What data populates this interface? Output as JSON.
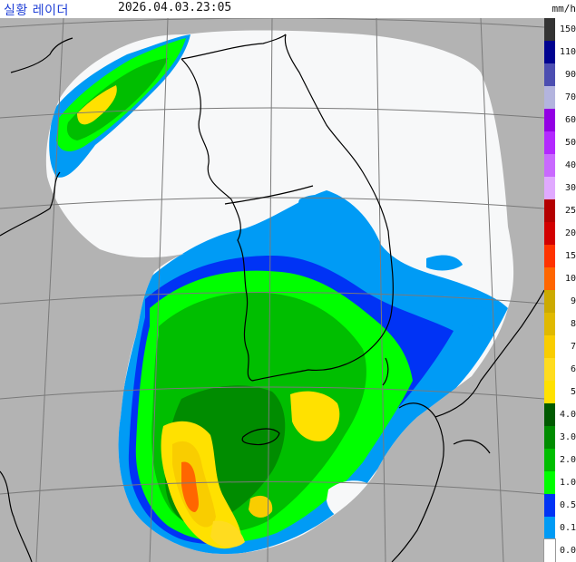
{
  "header": {
    "title": "실황 레이더",
    "timestamp": "2026.04.03.23:05"
  },
  "legend": {
    "unit": "mm/h",
    "levels": [
      {
        "label": "150",
        "color": "#333333"
      },
      {
        "label": "110",
        "color": "#000390"
      },
      {
        "label": "90",
        "color": "#4c4eb1"
      },
      {
        "label": "70",
        "color": "#b3b4de"
      },
      {
        "label": "60",
        "color": "#9300e4"
      },
      {
        "label": "50",
        "color": "#b329ff"
      },
      {
        "label": "40",
        "color": "#c969ff"
      },
      {
        "label": "30",
        "color": "#e0a9ff"
      },
      {
        "label": "25",
        "color": "#b40000"
      },
      {
        "label": "20",
        "color": "#d20000"
      },
      {
        "label": "15",
        "color": "#ff3300"
      },
      {
        "label": "10",
        "color": "#ff6600"
      },
      {
        "label": "9",
        "color": "#ccaa00"
      },
      {
        "label": "8",
        "color": "#e0b900"
      },
      {
        "label": "7",
        "color": "#f9cd00"
      },
      {
        "label": "6",
        "color": "#ffdc1f"
      },
      {
        "label": "5",
        "color": "#ffe100"
      },
      {
        "label": "4.0",
        "color": "#005a00"
      },
      {
        "label": "3.0",
        "color": "#008c00"
      },
      {
        "label": "2.0",
        "color": "#00be00"
      },
      {
        "label": "1.0",
        "color": "#00ff00"
      },
      {
        "label": "0.5",
        "color": "#0033f5"
      },
      {
        "label": "0.1",
        "color": "#009bf5"
      },
      {
        "label": "0.0",
        "color": "#ffffff"
      }
    ]
  },
  "colors": {
    "outside_coverage": "#b3b3b3",
    "no_echo": "#f7f8f9",
    "grid": "#7a7a7a",
    "coastline": "#000000"
  }
}
